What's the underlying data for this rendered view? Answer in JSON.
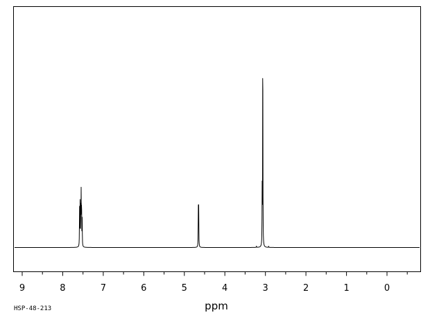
{
  "chart_data": {
    "type": "line",
    "title": "",
    "xlabel": "ppm",
    "ylabel": "",
    "xlim": [
      9.2,
      -0.8
    ],
    "x_reversed": true,
    "grid": false,
    "ticks": {
      "major": [
        "9",
        "8",
        "7",
        "6",
        "5",
        "4",
        "3",
        "2",
        "1",
        "0"
      ],
      "minor_step": 0.5
    },
    "series": [
      {
        "peaks": [
          {
            "ppm": 7.585,
            "intensity": 0.18
          },
          {
            "ppm": 7.57,
            "intensity": 0.22
          },
          {
            "ppm": 7.555,
            "intensity": 0.16
          },
          {
            "ppm": 7.545,
            "intensity": 0.235
          },
          {
            "ppm": 7.535,
            "intensity": 0.19
          },
          {
            "ppm": 7.52,
            "intensity": 0.12
          },
          {
            "ppm": 4.655,
            "intensity": 0.185
          },
          {
            "ppm": 4.645,
            "intensity": 0.175
          },
          {
            "ppm": 3.22,
            "intensity": 0.006
          },
          {
            "ppm": 3.08,
            "intensity": 0.25
          },
          {
            "ppm": 3.065,
            "intensity": 1.0
          },
          {
            "ppm": 2.92,
            "intensity": 0.006
          }
        ]
      }
    ]
  },
  "footer": {
    "sample_id": "HSP-48-213"
  }
}
